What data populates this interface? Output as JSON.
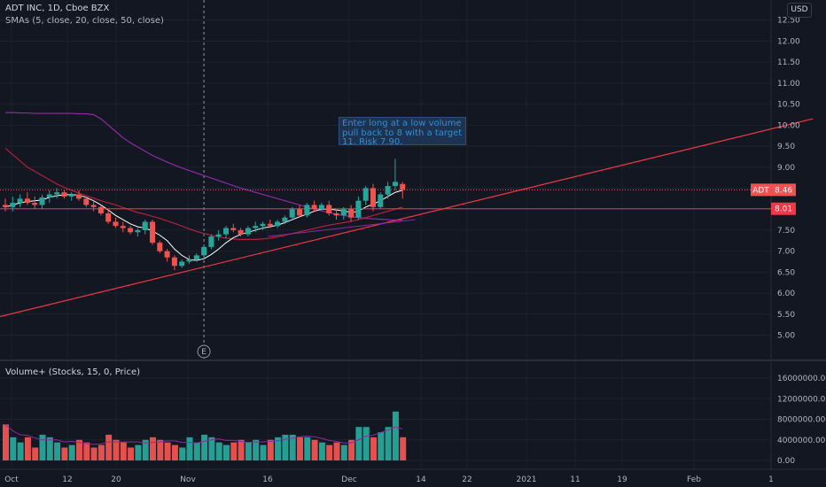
{
  "legend": {
    "symbol_line": "ADT INC, 1D, Cboe BZX",
    "sma_line": "SMAs (5, close, 20, close, 50, close)"
  },
  "volume_legend": "Volume+ (Stocks, 15, 0, Price)",
  "currency_label": "USD",
  "note_text": "Enter long at a low volume pull back to 8 with a target 11. Risk 7.90.",
  "price_badge": {
    "symbol": "ADT",
    "value": "8.46"
  },
  "level_badge": "8.01",
  "earnings_marker": "E",
  "colors": {
    "background": "#131722",
    "up": "#26a69a",
    "down": "#ef5350",
    "line_red": "#f23645",
    "sma5": "#ffffff",
    "sma20": "#b2223a",
    "sma50": "#8e2aa6",
    "note_bg": "#1e3350",
    "note_text": "#2f8fd8"
  },
  "chart_data": [
    {
      "type": "candlestick",
      "title": "ADT INC, 1D, Cboe BZX",
      "y_ticks": [
        "12.50",
        "12.00",
        "11.50",
        "11.00",
        "10.50",
        "10.00",
        "9.50",
        "9.00",
        "8.50",
        "8.00",
        "7.50",
        "7.00",
        "6.50",
        "6.00",
        "5.50",
        "5.00"
      ],
      "ylim": [
        4.8,
        12.6
      ],
      "x_ticks": [
        "Oct",
        "12",
        "20",
        "Nov",
        "16",
        "Dec",
        "14",
        "22",
        "2021",
        "11",
        "19",
        "Feb",
        "1"
      ],
      "last_price": 8.46,
      "horizontal_level": 8.01,
      "candles": [
        {
          "o": 8.1,
          "h": 8.25,
          "l": 7.95,
          "c": 8.05
        },
        {
          "o": 8.05,
          "h": 8.3,
          "l": 7.95,
          "c": 8.15
        },
        {
          "o": 8.15,
          "h": 8.35,
          "l": 8.05,
          "c": 8.25
        },
        {
          "o": 8.25,
          "h": 8.4,
          "l": 8.1,
          "c": 8.15
        },
        {
          "o": 8.15,
          "h": 8.3,
          "l": 8.0,
          "c": 8.1
        },
        {
          "o": 8.1,
          "h": 8.35,
          "l": 8.0,
          "c": 8.28
        },
        {
          "o": 8.28,
          "h": 8.45,
          "l": 8.15,
          "c": 8.35
        },
        {
          "o": 8.35,
          "h": 8.5,
          "l": 8.25,
          "c": 8.4
        },
        {
          "o": 8.4,
          "h": 8.45,
          "l": 8.25,
          "c": 8.3
        },
        {
          "o": 8.3,
          "h": 8.4,
          "l": 8.2,
          "c": 8.35
        },
        {
          "o": 8.35,
          "h": 8.45,
          "l": 8.2,
          "c": 8.25
        },
        {
          "o": 8.25,
          "h": 8.3,
          "l": 8.05,
          "c": 8.1
        },
        {
          "o": 8.1,
          "h": 8.2,
          "l": 7.95,
          "c": 8.05
        },
        {
          "o": 8.05,
          "h": 8.1,
          "l": 7.85,
          "c": 7.9
        },
        {
          "o": 7.9,
          "h": 8.0,
          "l": 7.65,
          "c": 7.7
        },
        {
          "o": 7.7,
          "h": 7.8,
          "l": 7.55,
          "c": 7.6
        },
        {
          "o": 7.6,
          "h": 7.7,
          "l": 7.45,
          "c": 7.55
        },
        {
          "o": 7.55,
          "h": 7.6,
          "l": 7.4,
          "c": 7.45
        },
        {
          "o": 7.45,
          "h": 7.55,
          "l": 7.35,
          "c": 7.5
        },
        {
          "o": 7.5,
          "h": 7.75,
          "l": 7.4,
          "c": 7.7
        },
        {
          "o": 7.7,
          "h": 7.75,
          "l": 7.15,
          "c": 7.2
        },
        {
          "o": 7.2,
          "h": 7.25,
          "l": 6.95,
          "c": 7.0
        },
        {
          "o": 7.0,
          "h": 7.05,
          "l": 6.75,
          "c": 6.85
        },
        {
          "o": 6.85,
          "h": 6.9,
          "l": 6.55,
          "c": 6.65
        },
        {
          "o": 6.65,
          "h": 6.8,
          "l": 6.6,
          "c": 6.75
        },
        {
          "o": 6.75,
          "h": 6.9,
          "l": 6.7,
          "c": 6.8
        },
        {
          "o": 6.8,
          "h": 6.95,
          "l": 6.75,
          "c": 6.9
        },
        {
          "o": 6.9,
          "h": 7.15,
          "l": 6.85,
          "c": 7.1
        },
        {
          "o": 7.1,
          "h": 7.4,
          "l": 7.05,
          "c": 7.35
        },
        {
          "o": 7.35,
          "h": 7.5,
          "l": 7.25,
          "c": 7.4
        },
        {
          "o": 7.4,
          "h": 7.6,
          "l": 7.3,
          "c": 7.55
        },
        {
          "o": 7.55,
          "h": 7.65,
          "l": 7.45,
          "c": 7.5
        },
        {
          "o": 7.5,
          "h": 7.55,
          "l": 7.35,
          "c": 7.4
        },
        {
          "o": 7.4,
          "h": 7.6,
          "l": 7.35,
          "c": 7.55
        },
        {
          "o": 7.55,
          "h": 7.7,
          "l": 7.45,
          "c": 7.6
        },
        {
          "o": 7.6,
          "h": 7.7,
          "l": 7.5,
          "c": 7.65
        },
        {
          "o": 7.65,
          "h": 7.75,
          "l": 7.55,
          "c": 7.6
        },
        {
          "o": 7.6,
          "h": 7.75,
          "l": 7.55,
          "c": 7.7
        },
        {
          "o": 7.7,
          "h": 7.85,
          "l": 7.65,
          "c": 7.8
        },
        {
          "o": 7.8,
          "h": 8.05,
          "l": 7.75,
          "c": 8.0
        },
        {
          "o": 8.0,
          "h": 8.1,
          "l": 7.8,
          "c": 7.85
        },
        {
          "o": 7.85,
          "h": 8.15,
          "l": 7.8,
          "c": 8.1
        },
        {
          "o": 8.1,
          "h": 8.2,
          "l": 7.95,
          "c": 8.0
        },
        {
          "o": 8.0,
          "h": 8.15,
          "l": 7.95,
          "c": 8.1
        },
        {
          "o": 8.1,
          "h": 8.2,
          "l": 7.85,
          "c": 7.9
        },
        {
          "o": 7.9,
          "h": 8.0,
          "l": 7.75,
          "c": 7.85
        },
        {
          "o": 7.85,
          "h": 8.05,
          "l": 7.75,
          "c": 8.0
        },
        {
          "o": 8.0,
          "h": 8.1,
          "l": 7.7,
          "c": 7.8
        },
        {
          "o": 7.8,
          "h": 8.3,
          "l": 7.75,
          "c": 8.2
        },
        {
          "o": 8.2,
          "h": 8.55,
          "l": 8.1,
          "c": 8.5
        },
        {
          "o": 8.5,
          "h": 8.6,
          "l": 7.95,
          "c": 8.05
        },
        {
          "o": 8.05,
          "h": 8.4,
          "l": 8.0,
          "c": 8.35
        },
        {
          "o": 8.35,
          "h": 8.65,
          "l": 8.25,
          "c": 8.55
        },
        {
          "o": 8.55,
          "h": 9.2,
          "l": 8.45,
          "c": 8.65
        },
        {
          "o": 8.6,
          "h": 8.65,
          "l": 8.25,
          "c": 8.46
        }
      ],
      "sma5": [
        8.05,
        8.1,
        8.15,
        8.18,
        8.2,
        8.22,
        8.28,
        8.32,
        8.34,
        8.35,
        8.33,
        8.28,
        8.2,
        8.1,
        7.98,
        7.85,
        7.75,
        7.65,
        7.58,
        7.55,
        7.48,
        7.38,
        7.25,
        7.05,
        6.9,
        6.8,
        6.78,
        6.82,
        6.92,
        7.05,
        7.2,
        7.32,
        7.4,
        7.45,
        7.5,
        7.55,
        7.58,
        7.62,
        7.68,
        7.75,
        7.82,
        7.88,
        7.95,
        8.0,
        8.0,
        7.98,
        7.96,
        7.92,
        7.95,
        8.05,
        8.12,
        8.2,
        8.3,
        8.4,
        8.45
      ],
      "sma20": [
        9.45,
        9.3,
        9.15,
        9.0,
        8.9,
        8.8,
        8.7,
        8.6,
        8.52,
        8.45,
        8.38,
        8.32,
        8.26,
        8.2,
        8.15,
        8.1,
        8.04,
        7.98,
        7.92,
        7.88,
        7.83,
        7.78,
        7.72,
        7.66,
        7.6,
        7.53,
        7.47,
        7.42,
        7.38,
        7.34,
        7.31,
        7.29,
        7.28,
        7.28,
        7.28,
        7.29,
        7.31,
        7.34,
        7.38,
        7.42,
        7.46,
        7.5,
        7.54,
        7.58,
        7.62,
        7.65,
        7.68,
        7.71,
        7.75,
        7.8,
        7.85,
        7.9,
        7.95,
        8.0,
        8.05
      ],
      "sma50": [
        10.3,
        10.3,
        10.29,
        10.29,
        10.28,
        10.28,
        10.28,
        10.28,
        10.28,
        10.28,
        10.27,
        10.27,
        10.25,
        10.15,
        10.0,
        9.85,
        9.7,
        9.58,
        9.48,
        9.38,
        9.28,
        9.2,
        9.12,
        9.05,
        8.98,
        8.92,
        8.86,
        8.8,
        8.74,
        8.68,
        8.62,
        8.56,
        8.5,
        8.45,
        8.4,
        8.35,
        8.3,
        8.25,
        8.2,
        8.15,
        8.1,
        8.05,
        8.0,
        7.96,
        7.92,
        7.88,
        7.85,
        7.82,
        7.8,
        7.78,
        7.77,
        7.76,
        7.75,
        7.74,
        7.74
      ],
      "trendline": {
        "from": {
          "bar": -1,
          "price": 5.42
        },
        "to": {
          "bar": 110,
          "price": 10.15
        }
      },
      "earnings_bar": 27
    },
    {
      "type": "bar",
      "title": "Volume+ (Stocks, 15, 0, Price)",
      "y_ticks": [
        "16000000.00",
        "12000000.00",
        "8000000.00",
        "4000000.00",
        "0.00"
      ],
      "ylim": [
        0,
        16000000
      ],
      "values": [
        7000000,
        4500000,
        3500000,
        4500000,
        2500000,
        5000000,
        4500000,
        3500000,
        2500000,
        3000000,
        4000000,
        3500000,
        2500000,
        3000000,
        5000000,
        4000000,
        3500000,
        2500000,
        3000000,
        4000000,
        4500000,
        4000000,
        3500000,
        3000000,
        2500000,
        4500000,
        3500000,
        5000000,
        4500000,
        3500000,
        3000000,
        3500000,
        4000000,
        3500000,
        4000000,
        3000000,
        4000000,
        4500000,
        5000000,
        5000000,
        4500000,
        4500000,
        4000000,
        3500000,
        3000000,
        3500000,
        3000000,
        4000000,
        6500000,
        6500000,
        4500000,
        5500000,
        6500000,
        9500000,
        4500000
      ]
    }
  ]
}
